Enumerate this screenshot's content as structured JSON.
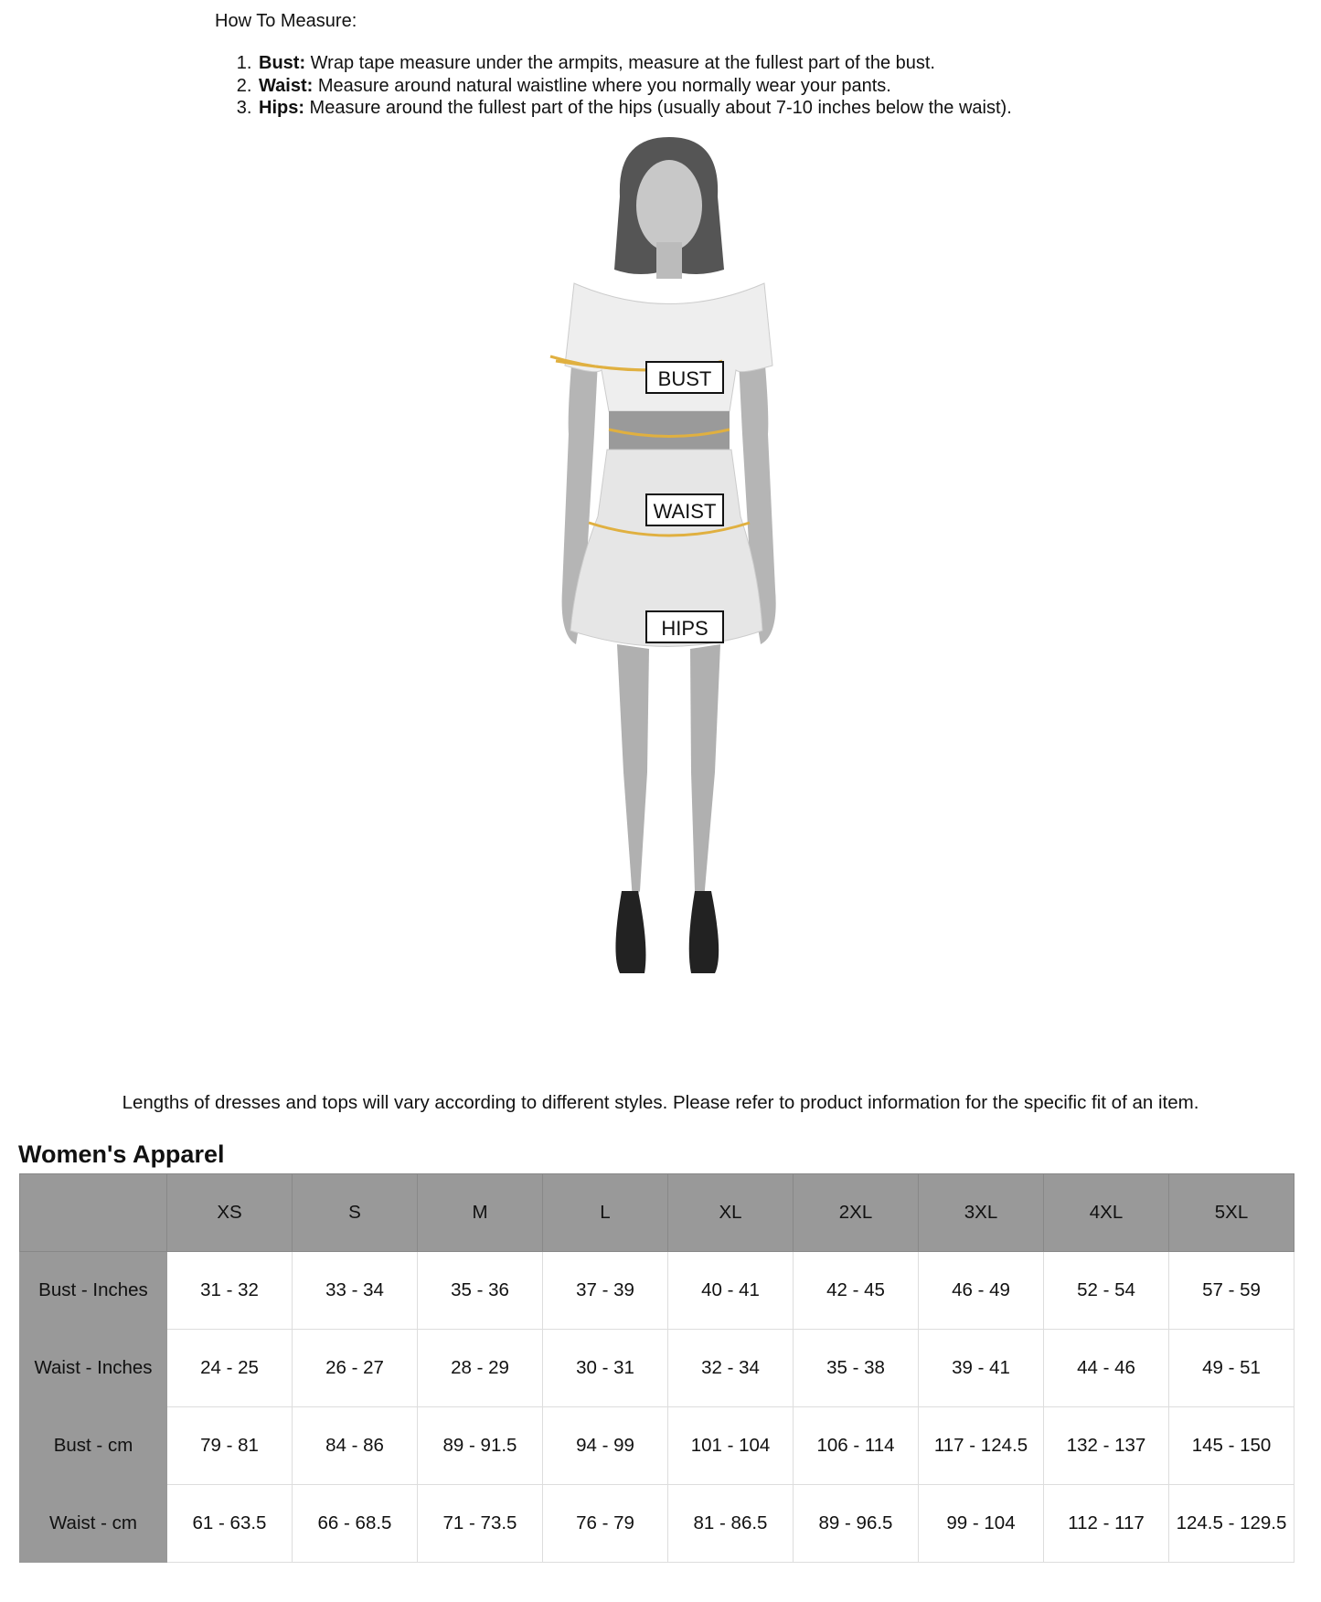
{
  "howto": {
    "heading": "How To Measure:",
    "steps": [
      {
        "label": "Bust:",
        "text": " Wrap tape measure under the armpits, measure at the fullest part of the bust."
      },
      {
        "label": "Waist:",
        "text": " Measure around natural waistline where you normally wear your pants."
      },
      {
        "label": "Hips:",
        "text": " Measure around the fullest part of the hips (usually about 7-10 inches below the waist)."
      }
    ]
  },
  "figure": {
    "tags": {
      "bust": "BUST",
      "waist": "WAIST",
      "hips": "HIPS"
    },
    "tape_color": "#e0b040"
  },
  "caption": "Lengths of dresses and tops will vary according to different styles. Please refer to product information for the specific fit of an item.",
  "table": {
    "title": "Women's Apparel",
    "sizes": [
      "XS",
      "S",
      "M",
      "L",
      "XL",
      "2XL",
      "3XL",
      "4XL",
      "5XL"
    ],
    "rows": [
      {
        "label": "Bust - Inches",
        "values": [
          "31 - 32",
          "33 - 34",
          "35 - 36",
          "37 - 39",
          "40 - 41",
          "42 - 45",
          "46 - 49",
          "52 - 54",
          "57 - 59"
        ]
      },
      {
        "label": "Waist - Inches",
        "values": [
          "24 - 25",
          "26 - 27",
          "28 - 29",
          "30 - 31",
          "32 - 34",
          "35 - 38",
          "39 - 41",
          "44 - 46",
          "49 - 51"
        ]
      },
      {
        "label": "Bust - cm",
        "values": [
          "79 - 81",
          "84 - 86",
          "89 - 91.5",
          "94 - 99",
          "101 - 104",
          "106 - 114",
          "117 - 124.5",
          "132 - 137",
          "145 - 150"
        ]
      },
      {
        "label": "Waist - cm",
        "values": [
          "61 - 63.5",
          "66 - 68.5",
          "71 - 73.5",
          "76 - 79",
          "81 - 86.5",
          "89 - 96.5",
          "99 - 104",
          "112 - 117",
          "124.5 - 129.5"
        ]
      }
    ]
  }
}
